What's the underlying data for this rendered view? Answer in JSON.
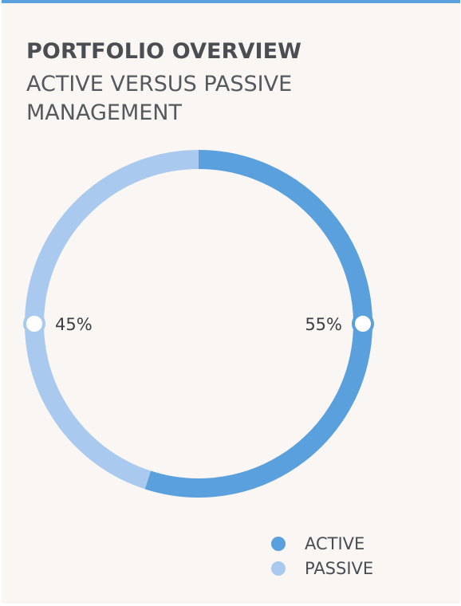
{
  "title": "PORTFOLIO OVERVIEW",
  "subtitle": "ACTIVE VERSUS PASSIVE MANAGEMENT",
  "colors": {
    "accent": "#5aa0dc",
    "active": "#5aa0dc",
    "passive": "#a9c9ee",
    "background": "#f9f6f4"
  },
  "chart_data": {
    "type": "pie",
    "title": "PORTFOLIO OVERVIEW",
    "subtitle": "ACTIVE VERSUS PASSIVE MANAGEMENT",
    "categories": [
      "ACTIVE",
      "PASSIVE"
    ],
    "values": [
      55,
      45
    ],
    "labels": [
      "55%",
      "45%"
    ],
    "colors": [
      "#5aa0dc",
      "#a9c9ee"
    ],
    "legend": "bottom-right"
  }
}
